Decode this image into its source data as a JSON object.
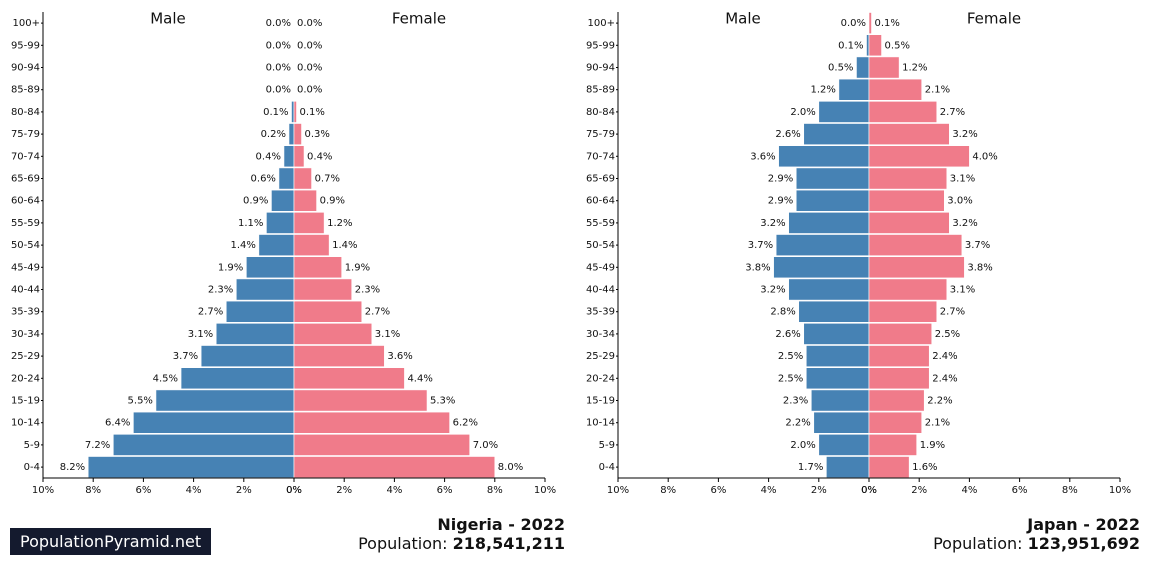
{
  "brand": "PopulationPyramid.net",
  "colors": {
    "male": "#4682b4",
    "female": "#f07b8a",
    "axis": "#000000"
  },
  "chart_data": [
    {
      "type": "bar",
      "orientation": "horizontal-pyramid",
      "country": "Nigeria - 2022",
      "population_label": "Population: ",
      "population_value": "218,541,211",
      "male_label": "Male",
      "female_label": "Female",
      "categories": [
        "100+",
        "95-99",
        "90-94",
        "85-89",
        "80-84",
        "75-79",
        "70-74",
        "65-69",
        "60-64",
        "55-59",
        "50-54",
        "45-49",
        "40-44",
        "35-39",
        "30-34",
        "25-29",
        "20-24",
        "15-19",
        "10-14",
        "5-9",
        "0-4"
      ],
      "series": [
        {
          "name": "Male",
          "values": [
            0.0,
            0.0,
            0.0,
            0.0,
            0.1,
            0.2,
            0.4,
            0.6,
            0.9,
            1.1,
            1.4,
            1.9,
            2.3,
            2.7,
            3.1,
            3.7,
            4.5,
            5.5,
            6.4,
            7.2,
            8.2
          ]
        },
        {
          "name": "Female",
          "values": [
            0.0,
            0.0,
            0.0,
            0.0,
            0.1,
            0.3,
            0.4,
            0.7,
            0.9,
            1.2,
            1.4,
            1.9,
            2.3,
            2.7,
            3.1,
            3.6,
            4.4,
            5.3,
            6.2,
            7.0,
            8.0
          ]
        }
      ],
      "xlim": [
        0,
        10
      ],
      "ticks": [
        "10%",
        "8%",
        "6%",
        "4%",
        "2%",
        "0%",
        "0%",
        "2%",
        "4%",
        "6%",
        "8%",
        "10%"
      ],
      "tick_values": [
        -10,
        -8,
        -6,
        -4,
        -2,
        0,
        0,
        2,
        4,
        6,
        8,
        10
      ]
    },
    {
      "type": "bar",
      "orientation": "horizontal-pyramid",
      "country": "Japan - 2022",
      "population_label": "Population: ",
      "population_value": "123,951,692",
      "male_label": "Male",
      "female_label": "Female",
      "categories": [
        "100+",
        "95-99",
        "90-94",
        "85-89",
        "80-84",
        "75-79",
        "70-74",
        "65-69",
        "60-64",
        "55-59",
        "50-54",
        "45-49",
        "40-44",
        "35-39",
        "30-34",
        "25-29",
        "20-24",
        "15-19",
        "10-14",
        "5-9",
        "0-4"
      ],
      "series": [
        {
          "name": "Male",
          "values": [
            0.0,
            0.1,
            0.5,
            1.2,
            2.0,
            2.6,
            3.6,
            2.9,
            2.9,
            3.2,
            3.7,
            3.8,
            3.2,
            2.8,
            2.6,
            2.5,
            2.5,
            2.3,
            2.2,
            2.0,
            1.7
          ]
        },
        {
          "name": "Female",
          "values": [
            0.1,
            0.5,
            1.2,
            2.1,
            2.7,
            3.2,
            4.0,
            3.1,
            3.0,
            3.2,
            3.7,
            3.8,
            3.1,
            2.7,
            2.5,
            2.4,
            2.4,
            2.2,
            2.1,
            1.9,
            1.6
          ]
        }
      ],
      "xlim": [
        0,
        10
      ],
      "ticks": [
        "10%",
        "8%",
        "6%",
        "4%",
        "2%",
        "0%",
        "0%",
        "2%",
        "4%",
        "6%",
        "8%",
        "10%"
      ],
      "tick_values": [
        -10,
        -8,
        -6,
        -4,
        -2,
        0,
        0,
        2,
        4,
        6,
        8,
        10
      ]
    }
  ]
}
